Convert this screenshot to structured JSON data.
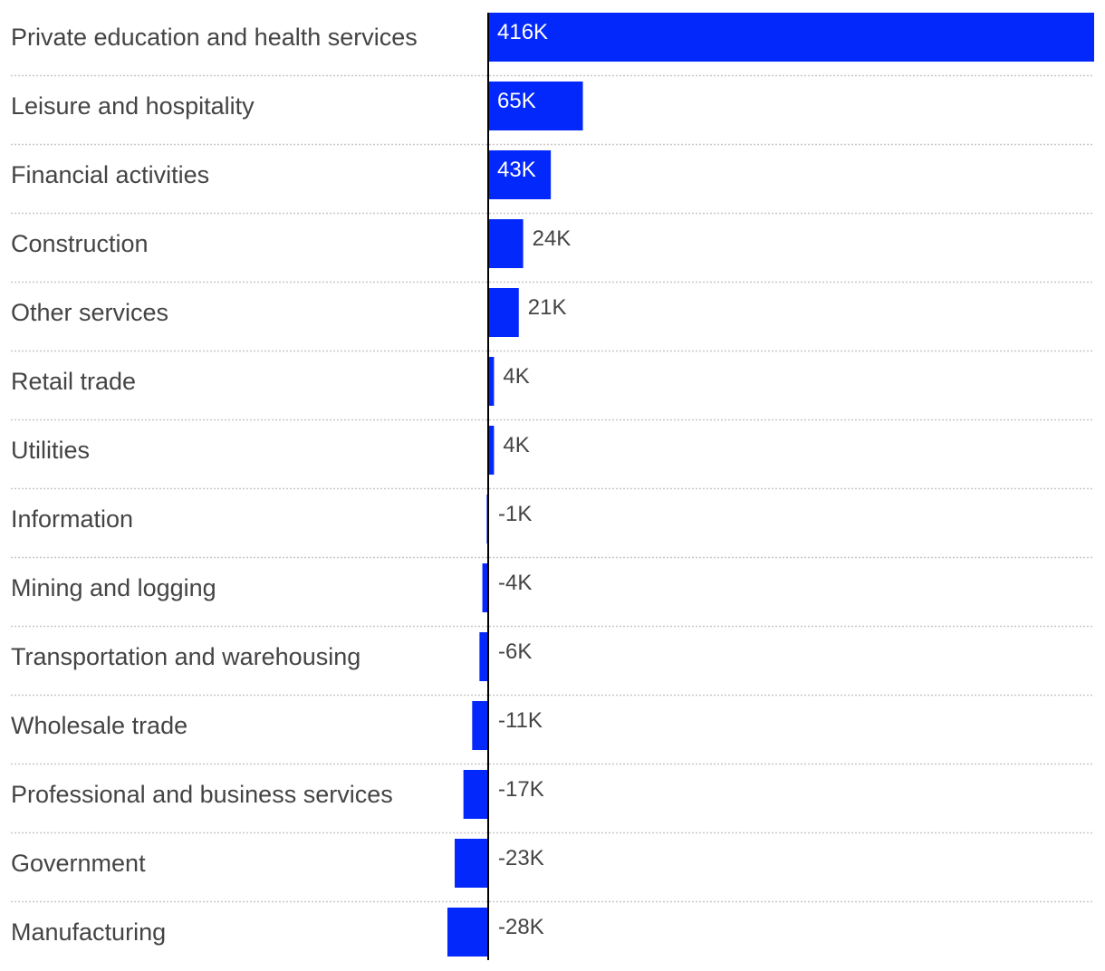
{
  "chart_data": {
    "type": "bar",
    "orientation": "horizontal",
    "categories": [
      "Private education and health services",
      "Leisure and hospitality",
      "Financial activities",
      "Construction",
      "Other services",
      "Retail trade",
      "Utilities",
      "Information",
      "Mining and logging",
      "Transportation and warehousing",
      "Wholesale trade",
      "Professional and business services",
      "Government",
      "Manufacturing"
    ],
    "values": [
      416,
      65,
      43,
      24,
      21,
      4,
      4,
      -1,
      -4,
      -6,
      -11,
      -17,
      -23,
      -28
    ],
    "value_labels": [
      "416K",
      "65K",
      "43K",
      "24K",
      "21K",
      "4K",
      "4K",
      "-1K",
      "-4K",
      "-6K",
      "-11K",
      "-17K",
      "-23K",
      "-28K"
    ],
    "unit": "thousands",
    "xlim": [
      -28,
      416
    ],
    "grid": false,
    "row_separators": "dotted",
    "legend": "none",
    "colors": {
      "bar": "#0328fc",
      "label_inside": "#ffffff",
      "label_outside": "#444444",
      "category_text": "#444444",
      "separator": "#c8c8c8",
      "zero_line": "#000000"
    }
  }
}
